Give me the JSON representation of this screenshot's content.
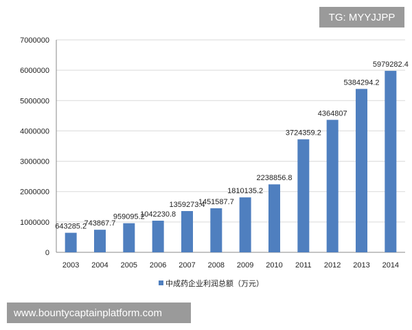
{
  "chart_data": {
    "type": "bar",
    "categories": [
      "2003",
      "2004",
      "2005",
      "2006",
      "2007",
      "2008",
      "2009",
      "2010",
      "2011",
      "2012",
      "2013",
      "2014"
    ],
    "values": [
      643285.2,
      743867.7,
      959095.2,
      1042230.8,
      1359273.4,
      1451587.7,
      1810135.2,
      2238856.8,
      3724359.2,
      4364807,
      5384294.2,
      5979282.4
    ],
    "data_labels": [
      "643285.2",
      "743867.7",
      "959095.2",
      "1042230.8",
      "1359273.4",
      "1451587.7",
      "1810135.2",
      "2238856.8",
      "3724359.2",
      "4364807",
      "5384294.2",
      "5979282.4"
    ],
    "series_name": "中成药企业利润总额（万元）",
    "ylim": [
      0,
      7000000
    ],
    "yticks": [
      0,
      1000000,
      2000000,
      3000000,
      4000000,
      5000000,
      6000000,
      7000000
    ],
    "ytick_labels": [
      "0",
      "1000000",
      "2000000",
      "3000000",
      "4000000",
      "5000000",
      "6000000",
      "7000000"
    ],
    "grid": true,
    "legend_position": "bottom",
    "bar_color": "#4f7fbf",
    "title": "",
    "xlabel": "",
    "ylabel": ""
  },
  "watermark_top": "TG: MYYJJPP",
  "watermark_bottom": "www.bountycaptainplatform.com"
}
